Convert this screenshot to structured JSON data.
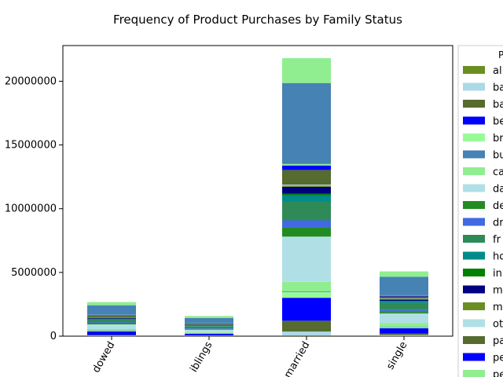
{
  "chart_data": {
    "type": "bar",
    "stacked": true,
    "title": "Frequency of Product Purchases by Family Status",
    "xlabel": "",
    "ylabel": "",
    "ylim": [
      0,
      22800000
    ],
    "yticks": [
      0,
      5000000,
      10000000,
      15000000,
      20000000
    ],
    "ytick_labels": [
      "0",
      "5000000",
      "10000000",
      "15000000",
      "20000000"
    ],
    "categories": [
      "widowed",
      "siblings",
      "married",
      "single"
    ],
    "category_labels_visible": [
      "dowed",
      "iblings",
      "married",
      "single"
    ],
    "legend": {
      "title": "P",
      "placement": "right, outside plot, clipped"
    },
    "grid": false,
    "series": [
      {
        "name": "al",
        "color": "#6b8e23",
        "values": [
          15000,
          10000,
          60000,
          20000
        ]
      },
      {
        "name": "ba",
        "color": "#add8e6",
        "values": [
          40000,
          30000,
          300000,
          70000
        ]
      },
      {
        "name": "ba",
        "color": "#556b2f",
        "values": [
          40000,
          20000,
          850000,
          110000
        ]
      },
      {
        "name": "be",
        "color": "#0000ff",
        "values": [
          280000,
          130000,
          1800000,
          420000
        ]
      },
      {
        "name": "br",
        "color": "#98fb98",
        "values": [
          60000,
          30000,
          450000,
          90000
        ]
      },
      {
        "name": "bu",
        "color": "#4682b4",
        "values": [
          40000,
          20000,
          50000,
          30000
        ]
      },
      {
        "name": "ca",
        "color": "#90ee90",
        "values": [
          80000,
          60000,
          750000,
          300000
        ]
      },
      {
        "name": "da",
        "color": "#b0e0e6",
        "values": [
          370000,
          200000,
          3550000,
          740000
        ]
      },
      {
        "name": "de",
        "color": "#228b22",
        "values": [
          60000,
          40000,
          720000,
          120000
        ]
      },
      {
        "name": "dr",
        "color": "#4169e1",
        "values": [
          90000,
          60000,
          560000,
          150000
        ]
      },
      {
        "name": "fr",
        "color": "#2e8b57",
        "values": [
          220000,
          150000,
          1450000,
          560000
        ]
      },
      {
        "name": "ho",
        "color": "#008b8b",
        "values": [
          60000,
          40000,
          520000,
          120000
        ]
      },
      {
        "name": "in",
        "color": "#008000",
        "values": [
          20000,
          20000,
          110000,
          40000
        ]
      },
      {
        "name": "m",
        "color": "#000080",
        "values": [
          70000,
          40000,
          550000,
          100000
        ]
      },
      {
        "name": "m",
        "color": "#6b8e23",
        "values": [
          20000,
          20000,
          100000,
          40000
        ]
      },
      {
        "name": "ot",
        "color": "#b0e0e6",
        "values": [
          20000,
          10000,
          70000,
          30000
        ]
      },
      {
        "name": "pa",
        "color": "#556b2f",
        "values": [
          120000,
          80000,
          1150000,
          170000
        ]
      },
      {
        "name": "pe",
        "color": "#0000ff",
        "values": [
          40000,
          30000,
          350000,
          60000
        ]
      },
      {
        "name": "pe",
        "color": "#90ee90",
        "values": [
          30000,
          20000,
          120000,
          40000
        ]
      },
      {
        "name": "",
        "color": "#4682b4",
        "values": [
          750000,
          420000,
          6350000,
          1450000
        ]
      },
      {
        "name": "",
        "color": "#90ee90",
        "values": [
          250000,
          150000,
          1950000,
          420000
        ]
      }
    ]
  }
}
